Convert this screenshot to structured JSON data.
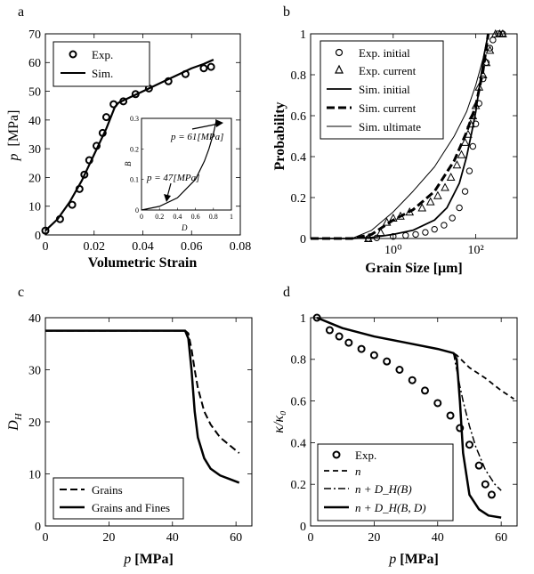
{
  "chart_data": [
    {
      "id": "a",
      "type": "line",
      "panel_label": "a",
      "xlabel": "Volumetric Strain",
      "ylabel_main": "p",
      "ylabel_unit": "[MPa]",
      "xlim": [
        0,
        0.08
      ],
      "ylim": [
        0,
        70
      ],
      "xticks": [
        0,
        0.02,
        0.04,
        0.06,
        0.08
      ],
      "xtick_labels": [
        "0",
        "0.02",
        "0.04",
        "0.06",
        "0.08"
      ],
      "yticks": [
        0,
        10,
        20,
        30,
        40,
        50,
        60,
        70
      ],
      "ytick_labels": [
        "0",
        "10",
        "20",
        "30",
        "40",
        "50",
        "60",
        "70"
      ],
      "legend": [
        "Exp.",
        "Sim."
      ],
      "series": [
        {
          "name": "Exp.",
          "style": "circle",
          "x": [
            0,
            0.006,
            0.011,
            0.014,
            0.016,
            0.018,
            0.021,
            0.0235,
            0.025,
            0.028,
            0.032,
            0.037,
            0.0425,
            0.0505,
            0.0575,
            0.065,
            0.068
          ],
          "y": [
            1.5,
            5.5,
            10.5,
            16,
            21,
            26,
            31,
            35.5,
            41,
            45.5,
            46.5,
            49,
            51,
            53.5,
            56,
            58,
            58.5
          ]
        },
        {
          "name": "Sim.",
          "style": "solid",
          "x": [
            0,
            0.005,
            0.01,
            0.015,
            0.02,
            0.025,
            0.0285,
            0.03,
            0.035,
            0.04,
            0.045,
            0.05,
            0.055,
            0.06,
            0.065,
            0.069
          ],
          "y": [
            1.5,
            5.5,
            11.5,
            19,
            28,
            37,
            44.5,
            46,
            48,
            50,
            52,
            54,
            56,
            58,
            59.5,
            61
          ]
        }
      ],
      "inset": {
        "xlabel": "D",
        "ylabel": "B",
        "xlim": [
          0,
          1
        ],
        "ylim": [
          0,
          0.3
        ],
        "xticks": [
          0,
          0.2,
          0.4,
          0.6,
          0.8,
          1
        ],
        "xtick_labels": [
          "0",
          "0.2",
          "0.4",
          "0.6",
          "0.8",
          "1"
        ],
        "yticks": [
          0,
          0.1,
          0.2,
          0.3
        ],
        "ytick_labels": [
          "0",
          "0.1",
          "0.2",
          "0.3"
        ],
        "curve_x": [
          0,
          0.2,
          0.4,
          0.5,
          0.6,
          0.7,
          0.75,
          0.8,
          0.83
        ],
        "curve_y": [
          0,
          0.012,
          0.04,
          0.07,
          0.1,
          0.16,
          0.2,
          0.25,
          0.29
        ],
        "annotations": [
          "p = 61[MPa]",
          "p = 47[MPa]"
        ]
      }
    },
    {
      "id": "b",
      "type": "line",
      "panel_label": "b",
      "xlabel": "Grain Size [μm]",
      "ylabel": "Probability",
      "xscale": "log",
      "xlim": [
        0.01,
        1000
      ],
      "ylim": [
        0,
        1
      ],
      "xticks": [
        1,
        100
      ],
      "xtick_labels": [
        "10⁰",
        "10²"
      ],
      "yticks": [
        0,
        0.2,
        0.4,
        0.6,
        0.8,
        1
      ],
      "ytick_labels": [
        "0",
        "0.2",
        "0.4",
        "0.6",
        "0.8",
        "1"
      ],
      "legend": [
        "Exp. initial",
        "Exp. current",
        "Sim. initial",
        "Sim. current",
        "Sim. ultimate"
      ],
      "series": [
        {
          "name": "Exp. initial",
          "style": "circle",
          "x": [
            0.25,
            0.4,
            1,
            2,
            3.5,
            6,
            10,
            17,
            27,
            40,
            55,
            70,
            85,
            100,
            120,
            150,
            180,
            220,
            260,
            350,
            450
          ],
          "y": [
            0,
            0.003,
            0.01,
            0.015,
            0.02,
            0.03,
            0.045,
            0.065,
            0.1,
            0.15,
            0.23,
            0.33,
            0.45,
            0.56,
            0.66,
            0.78,
            0.86,
            0.93,
            0.97,
            1,
            1
          ]
        },
        {
          "name": "Exp. current",
          "style": "triangle",
          "x": [
            0.25,
            0.5,
            0.7,
            1,
            1.5,
            2.5,
            5,
            8,
            12,
            18,
            25,
            35,
            45,
            55,
            65,
            75,
            85,
            100,
            120,
            150,
            180,
            220,
            300,
            380,
            450
          ],
          "y": [
            0,
            0.03,
            0.08,
            0.1,
            0.11,
            0.13,
            0.15,
            0.18,
            0.21,
            0.25,
            0.3,
            0.36,
            0.41,
            0.47,
            0.51,
            0.56,
            0.6,
            0.65,
            0.74,
            0.8,
            0.86,
            0.92,
            1,
            1,
            1
          ]
        },
        {
          "name": "Sim. initial",
          "style": "solid",
          "x": [
            0.01,
            0.1,
            0.3,
            1,
            3,
            10,
            20,
            40,
            60,
            80,
            100,
            130,
            160,
            200
          ],
          "y": [
            0,
            0,
            0.005,
            0.02,
            0.04,
            0.09,
            0.15,
            0.27,
            0.4,
            0.52,
            0.62,
            0.78,
            0.9,
            1
          ]
        },
        {
          "name": "Sim. current",
          "style": "dashed",
          "x": [
            0.01,
            0.1,
            0.3,
            1,
            3,
            10,
            30,
            60,
            100,
            150,
            200
          ],
          "y": [
            0,
            0,
            0.02,
            0.09,
            0.14,
            0.23,
            0.38,
            0.52,
            0.65,
            0.82,
            1
          ]
        },
        {
          "name": "Sim. ultimate",
          "style": "thin",
          "x": [
            0.01,
            0.1,
            0.3,
            1,
            3,
            10,
            30,
            60,
            100,
            150,
            200
          ],
          "y": [
            0,
            0,
            0.04,
            0.13,
            0.23,
            0.35,
            0.5,
            0.62,
            0.75,
            0.88,
            1
          ]
        }
      ]
    },
    {
      "id": "c",
      "type": "line",
      "panel_label": "c",
      "xlabel_main": "p",
      "xlabel_unit": "[MPa]",
      "ylabel": "D",
      "ylabel_sub": "H",
      "xlim": [
        0,
        65
      ],
      "ylim": [
        0,
        40
      ],
      "xticks": [
        0,
        20,
        40,
        60
      ],
      "xtick_labels": [
        "0",
        "20",
        "40",
        "60"
      ],
      "yticks": [
        0,
        10,
        20,
        30,
        40
      ],
      "ytick_labels": [
        "0",
        "10",
        "20",
        "30",
        "40"
      ],
      "legend": [
        "Grains",
        "Grains and Fines"
      ],
      "series": [
        {
          "name": "Grains",
          "style": "dashed",
          "x": [
            0,
            44,
            45,
            46,
            47,
            48,
            50,
            52,
            55,
            58,
            61
          ],
          "y": [
            37.5,
            37.5,
            37,
            34,
            30,
            26.5,
            22,
            19.5,
            17,
            15.5,
            14
          ]
        },
        {
          "name": "Grains and Fines",
          "style": "solid",
          "x": [
            0,
            44,
            45,
            46,
            47,
            48,
            50,
            52,
            55,
            58,
            61
          ],
          "y": [
            37.5,
            37.5,
            36,
            30,
            22,
            17,
            13,
            11,
            9.7,
            9,
            8.3
          ]
        }
      ]
    },
    {
      "id": "d",
      "type": "line",
      "panel_label": "d",
      "xlabel_main": "p",
      "xlabel_unit": "[MPa]",
      "ylabel": "κ/κ₀",
      "xlim": [
        0,
        65
      ],
      "ylim": [
        0,
        1
      ],
      "xticks": [
        0,
        20,
        40,
        60
      ],
      "xtick_labels": [
        "0",
        "20",
        "40",
        "60"
      ],
      "yticks": [
        0,
        0.2,
        0.4,
        0.6,
        0.8,
        1
      ],
      "ytick_labels": [
        "0",
        "0.2",
        "0.4",
        "0.6",
        "0.8",
        "1"
      ],
      "legend": [
        "Exp.",
        "n",
        "n + D_H(B)",
        "n + D_H(B, D)"
      ],
      "series": [
        {
          "name": "Exp.",
          "style": "circle",
          "x": [
            2,
            6,
            9,
            12,
            16,
            20,
            24,
            28,
            32,
            36,
            40,
            44,
            47,
            50,
            53,
            55,
            57
          ],
          "y": [
            1,
            0.94,
            0.91,
            0.88,
            0.85,
            0.82,
            0.79,
            0.75,
            0.7,
            0.65,
            0.59,
            0.53,
            0.47,
            0.39,
            0.29,
            0.2,
            0.15
          ]
        },
        {
          "name": "n",
          "style": "dashed",
          "x": [
            2,
            10,
            20,
            30,
            40,
            45,
            46,
            50,
            55,
            60,
            64
          ],
          "y": [
            1,
            0.95,
            0.91,
            0.88,
            0.85,
            0.83,
            0.82,
            0.76,
            0.71,
            0.65,
            0.61
          ]
        },
        {
          "name": "n + D_H(B)",
          "style": "dashdot",
          "x": [
            45,
            46,
            47,
            48,
            50,
            52,
            55,
            58,
            60
          ],
          "y": [
            0.83,
            0.75,
            0.67,
            0.6,
            0.48,
            0.38,
            0.27,
            0.2,
            0.17
          ]
        },
        {
          "name": "n + D_H(B, D)",
          "style": "solid",
          "x": [
            2,
            10,
            20,
            30,
            40,
            45,
            46,
            47,
            48,
            50,
            53,
            56,
            60
          ],
          "y": [
            1,
            0.95,
            0.91,
            0.88,
            0.85,
            0.83,
            0.8,
            0.6,
            0.35,
            0.15,
            0.08,
            0.05,
            0.04
          ]
        }
      ]
    }
  ]
}
